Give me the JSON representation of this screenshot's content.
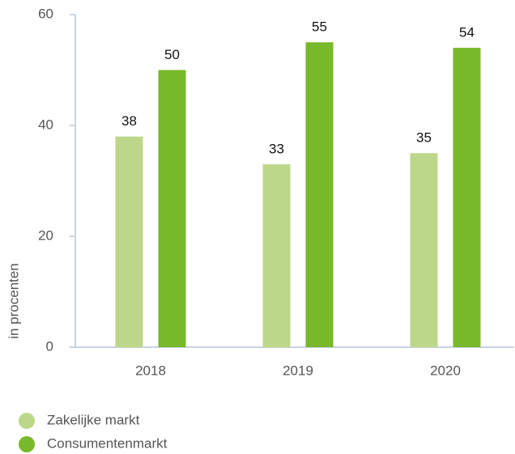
{
  "chart_data": {
    "type": "bar",
    "categories": [
      "2018",
      "2019",
      "2020"
    ],
    "series": [
      {
        "name": "Zakelijke markt",
        "color": "#bdd78a",
        "values": [
          38,
          33,
          35
        ]
      },
      {
        "name": "Consumentenmarkt",
        "color": "#78b82a",
        "values": [
          50,
          55,
          54
        ]
      }
    ],
    "y_label": "in procenten",
    "ylim": [
      0,
      60
    ],
    "yticks": [
      0,
      20,
      40,
      60
    ],
    "grid": false,
    "legend": "bottom-left"
  }
}
